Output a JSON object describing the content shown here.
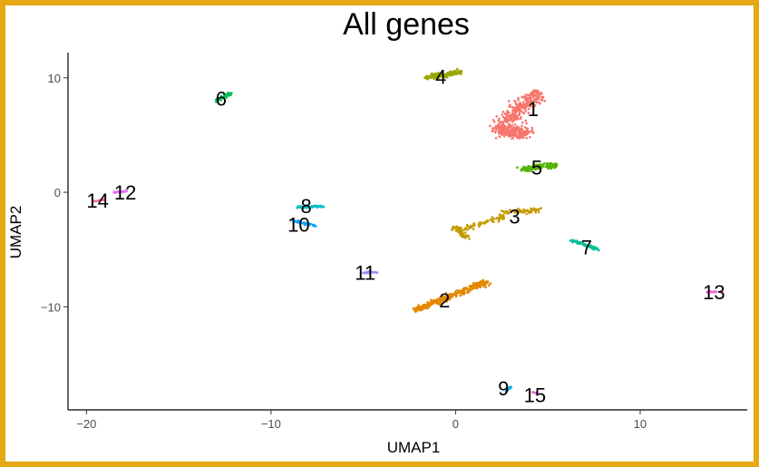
{
  "chart_data": {
    "type": "scatter",
    "title": "All genes",
    "xlabel": "UMAP1",
    "ylabel": "UMAP2",
    "xlim": [
      -21,
      15.8
    ],
    "ylim": [
      -19,
      12.2
    ],
    "xticks": [
      -20,
      -10,
      0,
      10
    ],
    "yticks": [
      -10,
      0,
      10
    ],
    "xtick_labels": [
      "−20",
      "−10",
      "0",
      "10"
    ],
    "ytick_labels": [
      "−10",
      "0",
      "10"
    ],
    "grid": false,
    "legend": "none",
    "clusters": [
      {
        "label": "1",
        "color": "#F8766D",
        "segments": [
          [
            2.5,
            6.0,
            4.5,
            8.6
          ],
          [
            2.3,
            5.5,
            3.7,
            5.2
          ]
        ],
        "spread": 0.75,
        "n": 520,
        "label_pos": [
          4.2,
          7.3
        ]
      },
      {
        "label": "2",
        "color": "#E38900",
        "segments": [
          [
            -2.2,
            -10.3,
            1.7,
            -7.8
          ]
        ],
        "spread": 0.35,
        "n": 300,
        "label_pos": [
          -0.6,
          -9.4
        ]
      },
      {
        "label": "3",
        "color": "#C49A00",
        "segments": [
          [
            2.6,
            -1.8,
            4.6,
            -1.5
          ],
          [
            0.2,
            -3.3,
            2.7,
            -2.1
          ],
          [
            -0.1,
            -3.0,
            0.6,
            -3.9
          ]
        ],
        "spread": 0.3,
        "n": 200,
        "label_pos": [
          3.2,
          -2.1
        ]
      },
      {
        "label": "4",
        "color": "#99A800",
        "segments": [
          [
            -1.6,
            10.0,
            0.3,
            10.5
          ]
        ],
        "spread": 0.3,
        "n": 150,
        "label_pos": [
          -0.8,
          10.1
        ]
      },
      {
        "label": "5",
        "color": "#53B400",
        "segments": [
          [
            3.6,
            2.0,
            5.4,
            2.4
          ]
        ],
        "spread": 0.3,
        "n": 150,
        "label_pos": [
          4.4,
          2.2
        ]
      },
      {
        "label": "6",
        "color": "#00BC56",
        "segments": [
          [
            -13.0,
            8.0,
            -12.2,
            8.7
          ]
        ],
        "spread": 0.18,
        "n": 60,
        "label_pos": [
          -12.7,
          8.2
        ]
      },
      {
        "label": "7",
        "color": "#00C094",
        "segments": [
          [
            6.3,
            -4.2,
            7.8,
            -5.0
          ]
        ],
        "spread": 0.15,
        "n": 80,
        "label_pos": [
          7.1,
          -4.8
        ]
      },
      {
        "label": "8",
        "color": "#00BFC4",
        "segments": [
          [
            -8.6,
            -1.3,
            -7.2,
            -1.2
          ]
        ],
        "spread": 0.15,
        "n": 70,
        "label_pos": [
          -8.1,
          -1.2
        ]
      },
      {
        "label": "9",
        "color": "#00B6EB",
        "segments": [
          [
            2.7,
            -17.4,
            3.0,
            -17.0
          ]
        ],
        "spread": 0.08,
        "n": 25,
        "label_pos": [
          2.6,
          -17.1
        ]
      },
      {
        "label": "10",
        "color": "#06A4FF",
        "segments": [
          [
            -8.8,
            -2.5,
            -7.6,
            -2.9
          ]
        ],
        "spread": 0.12,
        "n": 45,
        "label_pos": [
          -8.5,
          -2.8
        ]
      },
      {
        "label": "11",
        "color": "#A58AFF",
        "segments": [
          [
            -5.0,
            -7.0,
            -4.2,
            -7.0
          ]
        ],
        "spread": 0.1,
        "n": 35,
        "label_pos": [
          -4.9,
          -7.0
        ]
      },
      {
        "label": "12",
        "color": "#DF70F8",
        "segments": [
          [
            -18.5,
            0.0,
            -17.8,
            0.1
          ]
        ],
        "spread": 0.08,
        "n": 25,
        "label_pos": [
          -17.9,
          0.0
        ]
      },
      {
        "label": "13",
        "color": "#FB61D7",
        "segments": [
          [
            13.6,
            -8.7,
            14.5,
            -8.7
          ]
        ],
        "spread": 0.07,
        "n": 25,
        "label_pos": [
          14.0,
          -8.7
        ]
      },
      {
        "label": "14",
        "color": "#FF66A8",
        "segments": [
          [
            -19.6,
            -0.8,
            -19.0,
            -0.6
          ]
        ],
        "spread": 0.07,
        "n": 20,
        "label_pos": [
          -19.4,
          -0.7
        ]
      },
      {
        "label": "15",
        "color": "#F564E3",
        "segments": [
          [
            4.2,
            -17.5,
            4.6,
            -17.5
          ]
        ],
        "spread": 0.06,
        "n": 12,
        "label_pos": [
          4.3,
          -17.7
        ]
      }
    ]
  }
}
